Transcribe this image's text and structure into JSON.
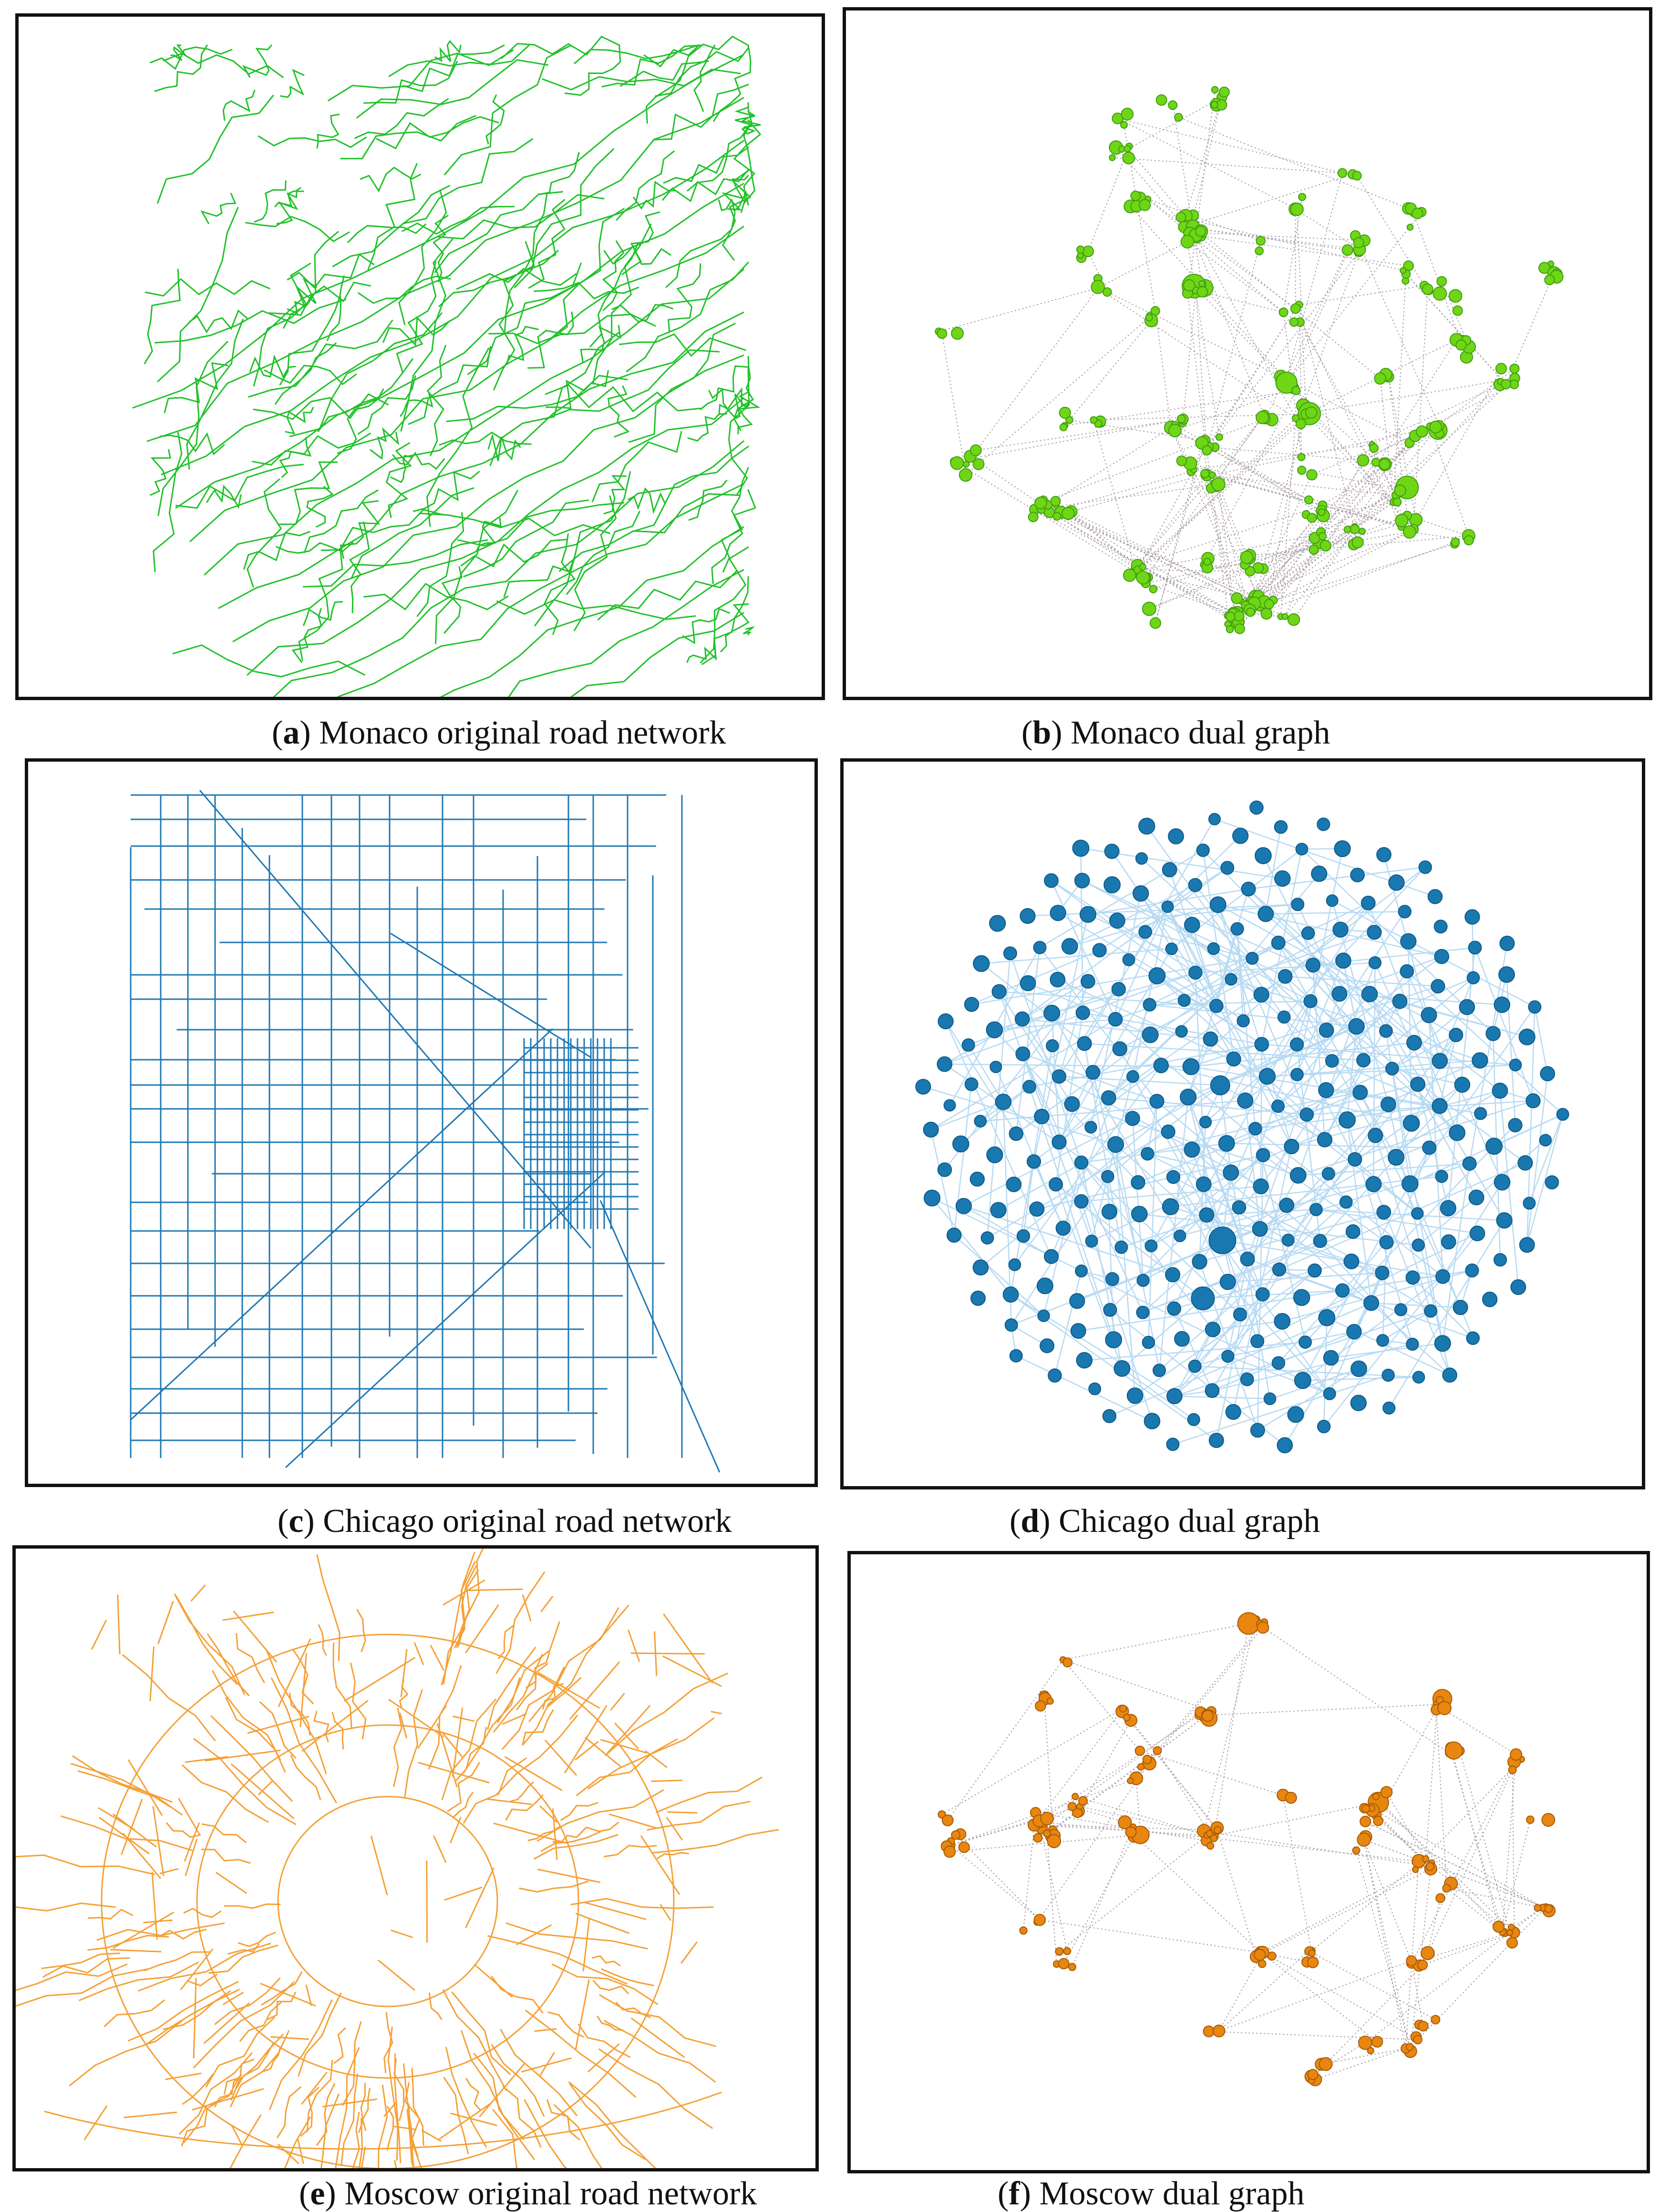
{
  "panels": [
    {
      "id": "a",
      "letter": "a",
      "label": "Monaco original road network",
      "kind": "road",
      "city": "Monaco",
      "color": "#22c12a"
    },
    {
      "id": "b",
      "letter": "b",
      "label": "Monaco dual graph",
      "kind": "dual",
      "city": "Monaco",
      "node_color": "#6fd615",
      "node_stroke": "#3f9c12",
      "edge_color": "#8a7a86"
    },
    {
      "id": "c",
      "letter": "c",
      "label": "Chicago original road network",
      "kind": "road",
      "city": "Chicago",
      "color": "#1f78b4"
    },
    {
      "id": "d",
      "letter": "d",
      "label": "Chicago dual graph",
      "kind": "dual",
      "city": "Chicago",
      "node_color": "#1a78b0",
      "node_stroke": "#0f5a86",
      "edge_color": "#9fcef0"
    },
    {
      "id": "e",
      "letter": "e",
      "label": "Moscow original road network",
      "kind": "road",
      "city": "Moscow",
      "color": "#f5a036"
    },
    {
      "id": "f",
      "letter": "f",
      "label": "Moscow dual graph",
      "kind": "dual",
      "city": "Moscow",
      "node_color": "#e8860f",
      "node_stroke": "#a65a05",
      "edge_color": "#8a7a86"
    }
  ]
}
